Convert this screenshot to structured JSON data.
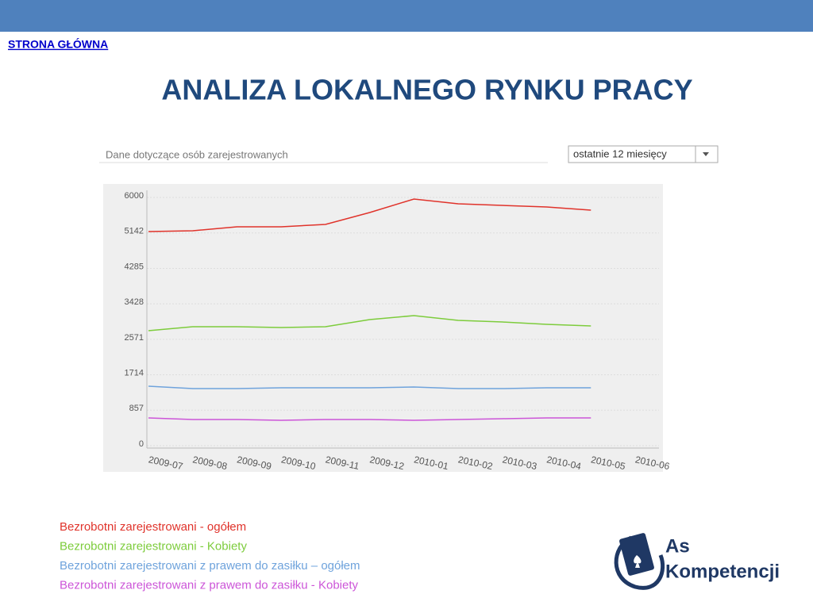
{
  "header": {
    "link": "STRONA GŁÓWNA",
    "title": "ANALIZA LOKALNEGO RYNKU PRACY"
  },
  "widget": {
    "caption": "Dane dotyczące osób zarejestrowanych",
    "dropdown": "ostatnie 12 miesięcy"
  },
  "chart_data": {
    "type": "line",
    "categories": [
      "2009-07",
      "2009-08",
      "2009-09",
      "2009-10",
      "2009-11",
      "2009-12",
      "2010-01",
      "2010-02",
      "2010-03",
      "2010-04",
      "2010-05",
      "2010-06"
    ],
    "series": [
      {
        "name": "Bezrobotni zarejestrowani - ogółem",
        "color": "#e0332b",
        "values": [
          5176,
          5195,
          5291,
          5291,
          5348,
          5636,
          5962,
          5847,
          5808,
          5770,
          5693,
          null
        ]
      },
      {
        "name": "Bezrobotni zarejestrowani  - Kobiety",
        "color": "#7dcc3c",
        "values": [
          2780,
          2875,
          2875,
          2856,
          2875,
          3048,
          3144,
          3029,
          2990,
          2933,
          2895,
          null
        ]
      },
      {
        "name": "Bezrobotni zarejestrowani z prawem do zasiłku – ogółem",
        "color": "#6fa3dc",
        "values": [
          1438,
          1380,
          1380,
          1399,
          1399,
          1399,
          1419,
          1380,
          1380,
          1399,
          1399,
          null
        ]
      },
      {
        "name": "Bezrobotni zarejestrowani z prawem do zasiłku - Kobiety",
        "color": "#cc55d8",
        "values": [
          671,
          633,
          633,
          613,
          633,
          633,
          613,
          633,
          652,
          671,
          671,
          null
        ]
      }
    ],
    "ylim": [
      0,
      6000
    ],
    "yticks": [
      0,
      857,
      1714,
      2571,
      3428,
      4285,
      5142,
      6000
    ],
    "grid": true
  },
  "logo": {
    "line1": "As",
    "line2": "Kompetencji"
  }
}
